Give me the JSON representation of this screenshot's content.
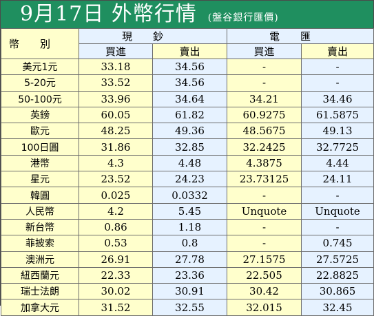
{
  "header": {
    "title": "9月17日 外幣行情",
    "subtitle": "(盤谷銀行匯價)"
  },
  "columns": {
    "corner": "幣別",
    "cash": "現鈔",
    "telegraphic": "電匯",
    "buy": "買進",
    "sell": "賣出"
  },
  "rows": [
    {
      "currency": "美元1元",
      "cash_buy": "33.18",
      "cash_sell": "34.56",
      "tt_buy": "-",
      "tt_sell": "-"
    },
    {
      "currency": "5-20元",
      "cash_buy": "33.52",
      "cash_sell": "34.56",
      "tt_buy": "-",
      "tt_sell": "-"
    },
    {
      "currency": "50-100元",
      "cash_buy": "33.96",
      "cash_sell": "34.64",
      "tt_buy": "34.21",
      "tt_sell": "34.46"
    },
    {
      "currency": "英鎊",
      "cash_buy": "60.05",
      "cash_sell": "61.82",
      "tt_buy": "60.9275",
      "tt_sell": "61.5875"
    },
    {
      "currency": "歐元",
      "cash_buy": "48.25",
      "cash_sell": "49.36",
      "tt_buy": "48.5675",
      "tt_sell": "49.13"
    },
    {
      "currency": "100日圓",
      "cash_buy": "31.86",
      "cash_sell": "32.85",
      "tt_buy": "32.2425",
      "tt_sell": "32.7725"
    },
    {
      "currency": "港幣",
      "cash_buy": "4.3",
      "cash_sell": "4.48",
      "tt_buy": "4.3875",
      "tt_sell": "4.44"
    },
    {
      "currency": "星元",
      "cash_buy": "23.52",
      "cash_sell": "24.23",
      "tt_buy": "23.73125",
      "tt_sell": "24.11"
    },
    {
      "currency": "韓圓",
      "cash_buy": "0.025",
      "cash_sell": "0.0332",
      "tt_buy": "-",
      "tt_sell": "-"
    },
    {
      "currency": "人民幣",
      "cash_buy": "4.2",
      "cash_sell": "5.45",
      "tt_buy": "Unquote",
      "tt_sell": "Unquote"
    },
    {
      "currency": "新台幣",
      "cash_buy": "0.86",
      "cash_sell": "1.18",
      "tt_buy": "-",
      "tt_sell": "-"
    },
    {
      "currency": "菲披索",
      "cash_buy": "0.53",
      "cash_sell": "0.8",
      "tt_buy": "-",
      "tt_sell": "0.745"
    },
    {
      "currency": "澳洲元",
      "cash_buy": "26.91",
      "cash_sell": "27.78",
      "tt_buy": "27.1575",
      "tt_sell": "27.5725"
    },
    {
      "currency": "紐西蘭元",
      "cash_buy": "22.33",
      "cash_sell": "23.36",
      "tt_buy": "22.505",
      "tt_sell": "22.8825"
    },
    {
      "currency": "瑞士法朗",
      "cash_buy": "30.02",
      "cash_sell": "30.91",
      "tt_buy": "30.42",
      "tt_sell": "30.865"
    },
    {
      "currency": "加拿大元",
      "cash_buy": "31.52",
      "cash_sell": "32.55",
      "tt_buy": "32.015",
      "tt_sell": "32.45"
    }
  ]
}
